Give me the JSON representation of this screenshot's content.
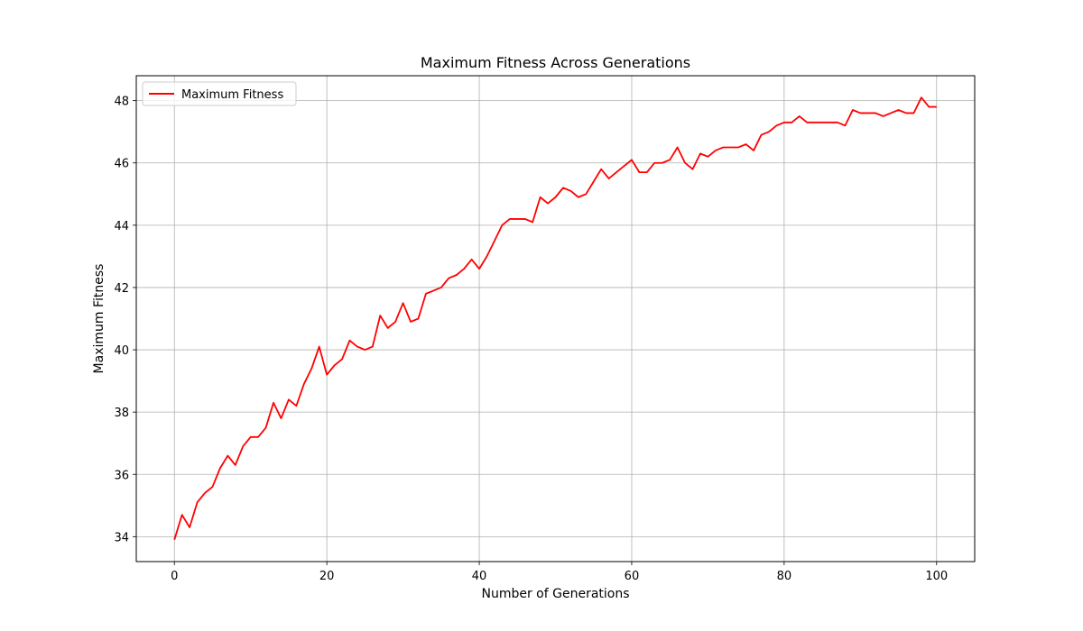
{
  "chart_data": {
    "type": "line",
    "title": "Maximum Fitness Across Generations",
    "xlabel": "Number of Generations",
    "ylabel": "Maximum Fitness",
    "xlim": [
      -5,
      105
    ],
    "ylim": [
      33.2,
      48.8
    ],
    "x_ticks": [
      0,
      20,
      40,
      60,
      80,
      100
    ],
    "y_ticks": [
      34,
      36,
      38,
      40,
      42,
      44,
      46,
      48
    ],
    "grid": true,
    "legend_position": "upper-left",
    "series": [
      {
        "name": "Maximum Fitness",
        "color": "#ff0000",
        "x": [
          0,
          1,
          2,
          3,
          4,
          5,
          6,
          7,
          8,
          9,
          10,
          11,
          12,
          13,
          14,
          15,
          16,
          17,
          18,
          19,
          20,
          21,
          22,
          23,
          24,
          25,
          26,
          27,
          28,
          29,
          30,
          31,
          32,
          33,
          34,
          35,
          36,
          37,
          38,
          39,
          40,
          41,
          42,
          43,
          44,
          45,
          46,
          47,
          48,
          49,
          50,
          51,
          52,
          53,
          54,
          55,
          56,
          57,
          58,
          59,
          60,
          61,
          62,
          63,
          64,
          65,
          66,
          67,
          68,
          69,
          70,
          71,
          72,
          73,
          74,
          75,
          76,
          77,
          78,
          79,
          80,
          81,
          82,
          83,
          84,
          85,
          86,
          87,
          88,
          89,
          90,
          91,
          92,
          93,
          94,
          95,
          96,
          97,
          98,
          99,
          100
        ],
        "y": [
          33.9,
          34.7,
          34.3,
          35.1,
          35.4,
          35.6,
          36.2,
          36.6,
          36.3,
          36.9,
          37.2,
          37.2,
          37.5,
          38.3,
          37.8,
          38.4,
          38.2,
          38.9,
          39.4,
          40.1,
          39.2,
          39.5,
          39.7,
          40.3,
          40.1,
          40.0,
          40.1,
          41.1,
          40.7,
          40.9,
          41.5,
          40.9,
          41.0,
          41.8,
          41.9,
          42.0,
          42.3,
          42.4,
          42.6,
          42.9,
          42.6,
          43.0,
          43.5,
          44.0,
          44.2,
          44.2,
          44.2,
          44.1,
          44.9,
          44.7,
          44.9,
          45.2,
          45.1,
          44.9,
          45.0,
          45.4,
          45.8,
          45.5,
          45.7,
          45.9,
          46.1,
          45.7,
          45.7,
          46.0,
          46.0,
          46.1,
          46.5,
          46.0,
          45.8,
          46.3,
          46.2,
          46.4,
          46.5,
          46.5,
          46.5,
          46.6,
          46.4,
          46.9,
          47.0,
          47.2,
          47.3,
          47.3,
          47.5,
          47.3,
          47.3,
          47.3,
          47.3,
          47.3,
          47.2,
          47.7,
          47.6,
          47.6,
          47.6,
          47.5,
          47.6,
          47.7,
          47.6,
          47.6,
          48.1,
          47.8,
          47.8
        ]
      }
    ]
  }
}
